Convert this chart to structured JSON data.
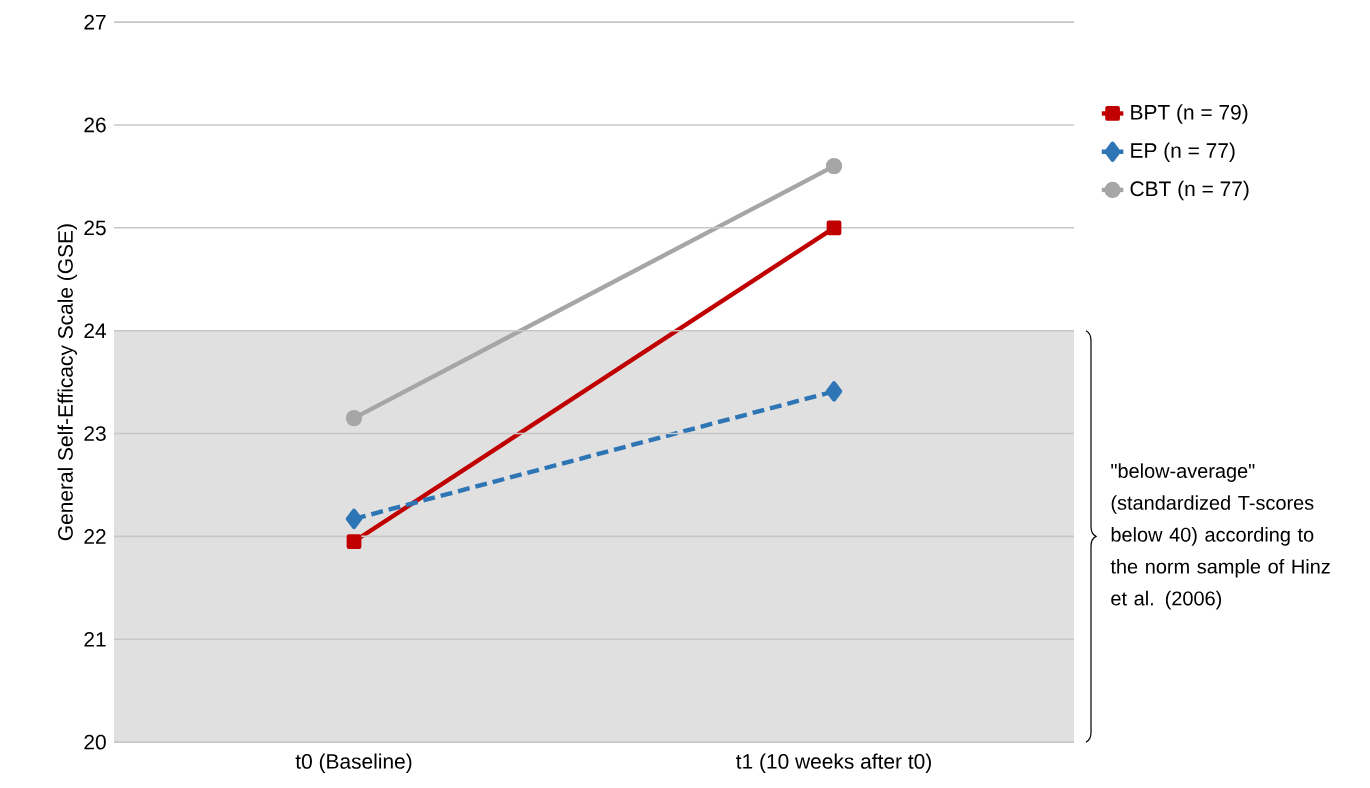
{
  "chart_data": {
    "type": "line",
    "ylabel": "General Self-Efficacy Scale (GSE)",
    "categories": [
      "t0 (Baseline)",
      "t1 (10 weeks after t0)"
    ],
    "series": [
      {
        "name": "BPT (n = 79)",
        "color": "#c00000",
        "values": [
          21.95,
          25.0
        ],
        "marker": "square",
        "line_style": "solid"
      },
      {
        "name": "EP (n = 77)",
        "color": "#2e75b6",
        "values": [
          22.17,
          23.41
        ],
        "marker": "diamond",
        "line_style": "dashed"
      },
      {
        "name": "CBT (n = 77)",
        "color": "#a6a6a6",
        "values": [
          23.15,
          25.6
        ],
        "marker": "circle",
        "line_style": "solid"
      }
    ],
    "ylim": [
      20,
      27
    ],
    "yticks": [
      20,
      21,
      22,
      23,
      24,
      25,
      26,
      27
    ],
    "grid": "y",
    "legend": "right",
    "bands": [
      {
        "axis": "y",
        "from": 20,
        "to": 24,
        "color": "#e0e0e0",
        "label": "\"below-average\" (standardized T-scores below 40) according to the norm sample of Hinz et al. (2006)"
      }
    ]
  }
}
